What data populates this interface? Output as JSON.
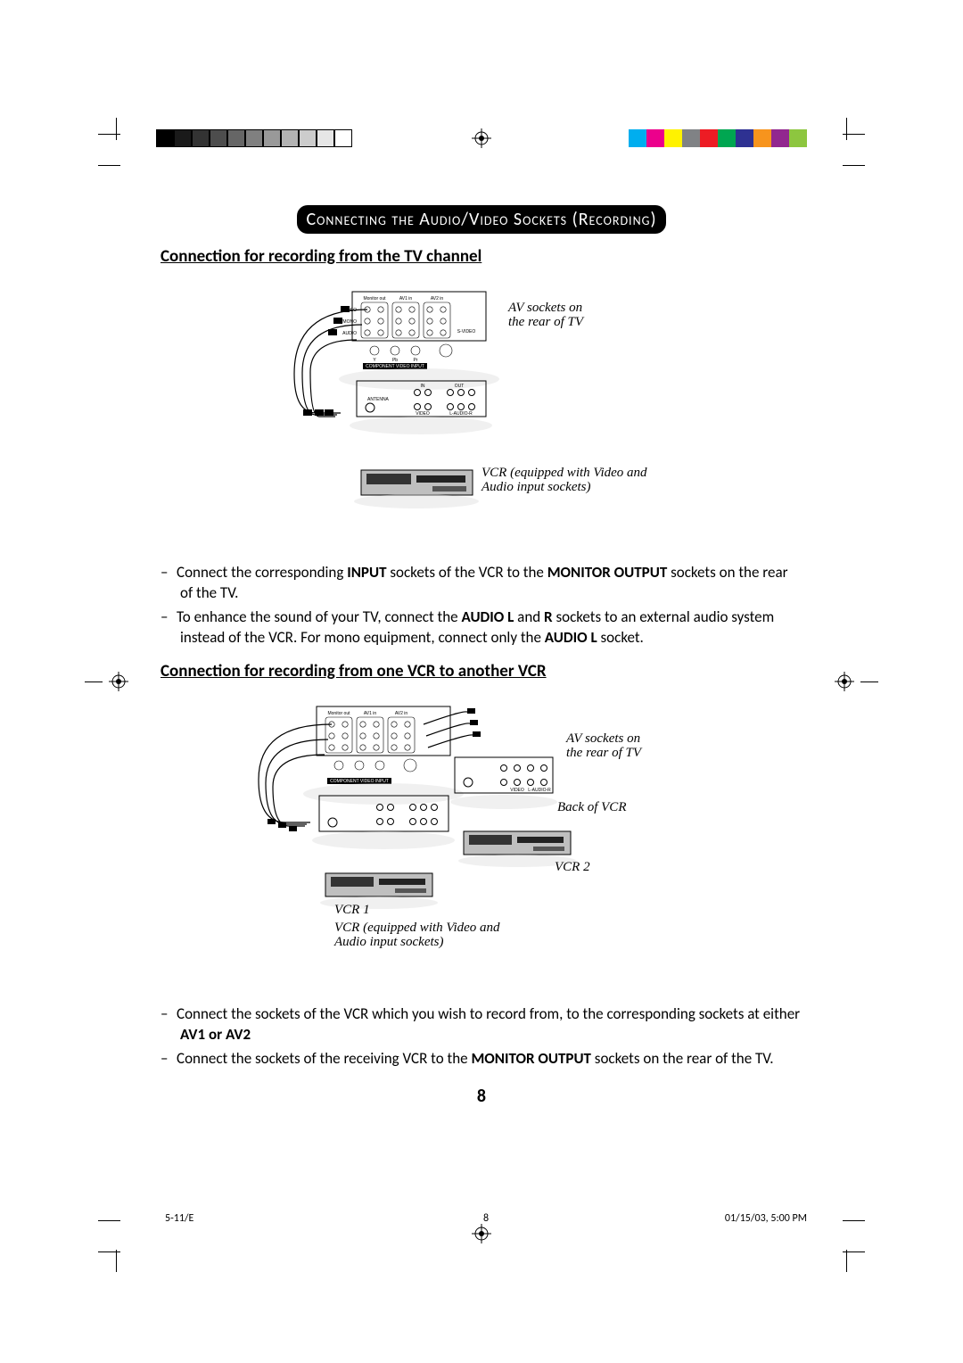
{
  "banner": "Connecting the Audio/Video Sockets (Recording)",
  "section1": {
    "title": "Connection for recording from the TV channel",
    "label_av": "AV sockets on the rear of TV",
    "label_vcr": "VCR (equipped with Video and Audio input sockets)",
    "bullets": [
      {
        "pre": "Connect the corresponding ",
        "b1": "INPUT",
        "mid": " sockets of the VCR to the ",
        "b2": "MONITOR OUTPUT",
        "post": " sockets on the rear of the TV."
      },
      {
        "pre": "To enhance the sound of your TV, connect the ",
        "b1": "AUDIO L",
        "mid": " and ",
        "b2": "R",
        "mid2": " sockets to an external audio system instead of the VCR. For mono equipment, connect only the ",
        "b3": "AUDIO L",
        "post": " socket."
      }
    ]
  },
  "section2": {
    "title": "Connection for recording from one VCR to another VCR",
    "label_av": "AV sockets on the rear of TV",
    "label_back": "Back of VCR",
    "label_vcr2": "VCR 2",
    "label_vcr1": "VCR 1",
    "label_vcr_desc": "VCR (equipped with Video and Audio input sockets)",
    "bullets": [
      {
        "pre": "Connect the sockets of the VCR which you wish to record from, to the corresponding sockets at either ",
        "b1": "AV1 or AV2"
      },
      {
        "pre": "Connect the sockets of the receiving VCR to the ",
        "b1": "MONITOR OUTPUT",
        "post": " sockets on the rear of the TV."
      }
    ]
  },
  "page_number": "8",
  "footer": {
    "left": "5-11/E",
    "mid": "8",
    "right": "01/15/03, 5:00 PM"
  },
  "proof": {
    "gray_scale": [
      "#000000",
      "#1a1a1a",
      "#333333",
      "#4d4d4d",
      "#666666",
      "#808080",
      "#999999",
      "#b3b3b3",
      "#cccccc",
      "#e6e6e6",
      "#ffffff"
    ],
    "colors": [
      "#00aeef",
      "#ec008c",
      "#fff200",
      "#808285",
      "#ed1c24",
      "#00a651",
      "#2e3192",
      "#f7941d",
      "#92278f",
      "#8dc63f"
    ]
  },
  "tv_panel": {
    "cols": [
      "Monitor out",
      "AV1 in",
      "AV2 in"
    ],
    "row1": "VIDEO",
    "row2": "L/MONO",
    "row3": "AUDIO",
    "bottom": "COMPONENT VIDEO INPUT",
    "svideo": "S-VIDEO",
    "sub": [
      "Y",
      "Pb",
      "Pr"
    ]
  },
  "vcr_panel": {
    "in": "IN",
    "out": "OUT",
    "ant": "ANTENNA",
    "video": "VIDEO",
    "laudio": "L-AUDIO-R",
    "r": "R"
  }
}
